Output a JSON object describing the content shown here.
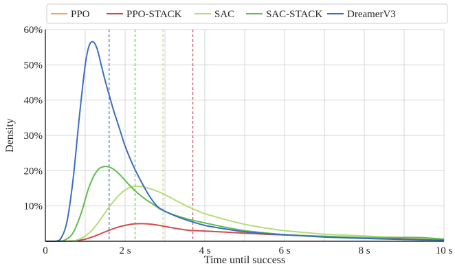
{
  "chart_data": {
    "type": "line",
    "xlabel": "Time until success",
    "ylabel": "Density",
    "xlim": [
      0,
      10
    ],
    "ylim": [
      0,
      0.6
    ],
    "x_ticks": [
      {
        "value": 0,
        "label": "0"
      },
      {
        "value": 2,
        "label": "2 s"
      },
      {
        "value": 4,
        "label": "4 s"
      },
      {
        "value": 6,
        "label": "6 s"
      },
      {
        "value": 8,
        "label": "8 s"
      },
      {
        "value": 10,
        "label": "10 s"
      }
    ],
    "y_ticks": [
      {
        "value": 0.1,
        "label": "10%"
      },
      {
        "value": 0.2,
        "label": "20%"
      },
      {
        "value": 0.3,
        "label": "30%"
      },
      {
        "value": 0.4,
        "label": "40%"
      },
      {
        "value": 0.5,
        "label": "50%"
      },
      {
        "value": 0.6,
        "label": "60%"
      }
    ],
    "grid": true,
    "legend_position": "top",
    "series": [
      {
        "name": "PPO",
        "color": "#f4a261",
        "x": [],
        "y": [],
        "mean": null
      },
      {
        "name": "PPO-STACK",
        "color": "#d1494e",
        "mean": 3.7,
        "x": [
          0,
          0.5,
          0.8,
          1.0,
          1.2,
          1.4,
          1.6,
          1.8,
          2.0,
          2.2,
          2.4,
          2.6,
          2.8,
          3.0,
          3.2,
          3.4,
          3.6,
          3.8,
          4.0,
          4.5,
          5.0,
          5.5,
          6.0,
          7.0,
          8.0,
          9.0,
          10.0
        ],
        "y": [
          0,
          0,
          0.002,
          0.006,
          0.013,
          0.022,
          0.031,
          0.039,
          0.045,
          0.049,
          0.05,
          0.049,
          0.046,
          0.042,
          0.038,
          0.034,
          0.031,
          0.03,
          0.029,
          0.026,
          0.023,
          0.02,
          0.018,
          0.014,
          0.01,
          0.007,
          0.004
        ]
      },
      {
        "name": "SAC",
        "color": "#b5dc7a",
        "mean": 2.95,
        "x": [
          0,
          0.6,
          0.8,
          1.0,
          1.2,
          1.4,
          1.6,
          1.8,
          2.0,
          2.2,
          2.4,
          2.6,
          2.8,
          3.0,
          3.2,
          3.4,
          3.6,
          3.8,
          4.0,
          4.5,
          5.0,
          5.5,
          6.0,
          6.5,
          7.0,
          8.0,
          9.0,
          10.0
        ],
        "y": [
          0,
          0,
          0.004,
          0.015,
          0.035,
          0.065,
          0.097,
          0.125,
          0.145,
          0.155,
          0.155,
          0.15,
          0.142,
          0.132,
          0.12,
          0.108,
          0.097,
          0.087,
          0.078,
          0.062,
          0.048,
          0.038,
          0.03,
          0.025,
          0.02,
          0.015,
          0.01,
          0.006
        ]
      },
      {
        "name": "SAC-STACK",
        "color": "#5cbf4a",
        "mean": 2.25,
        "x": [
          0,
          0.3,
          0.5,
          0.7,
          0.9,
          1.1,
          1.3,
          1.5,
          1.7,
          1.9,
          2.1,
          2.3,
          2.5,
          2.7,
          2.9,
          3.1,
          3.3,
          3.6,
          4.0,
          4.5,
          5.0,
          5.5,
          6.0,
          6.5,
          7.0,
          7.5,
          8.0,
          8.5,
          9.0,
          9.5,
          10.0
        ],
        "y": [
          0,
          0,
          0.004,
          0.025,
          0.08,
          0.155,
          0.2,
          0.212,
          0.205,
          0.185,
          0.16,
          0.138,
          0.12,
          0.105,
          0.09,
          0.08,
          0.072,
          0.062,
          0.052,
          0.04,
          0.03,
          0.024,
          0.019,
          0.016,
          0.014,
          0.012,
          0.011,
          0.01,
          0.011,
          0.01,
          0.006
        ]
      },
      {
        "name": "DreamerV3",
        "color": "#3b6cc4",
        "mean": 1.6,
        "x": [
          0,
          0.25,
          0.4,
          0.55,
          0.7,
          0.85,
          1.0,
          1.1,
          1.2,
          1.3,
          1.4,
          1.5,
          1.6,
          1.7,
          1.8,
          1.9,
          2.0,
          2.2,
          2.4,
          2.6,
          2.8,
          3.0,
          3.3,
          3.6,
          4.0,
          4.5,
          5.0,
          5.5,
          6.0,
          6.5,
          7.0,
          8.0,
          9.0,
          10.0
        ],
        "y": [
          0,
          0,
          0.01,
          0.06,
          0.18,
          0.35,
          0.5,
          0.555,
          0.565,
          0.545,
          0.5,
          0.455,
          0.415,
          0.375,
          0.34,
          0.305,
          0.27,
          0.215,
          0.17,
          0.13,
          0.1,
          0.085,
          0.07,
          0.058,
          0.045,
          0.035,
          0.027,
          0.022,
          0.018,
          0.015,
          0.012,
          0.008,
          0.005,
          0.003
        ]
      }
    ]
  }
}
